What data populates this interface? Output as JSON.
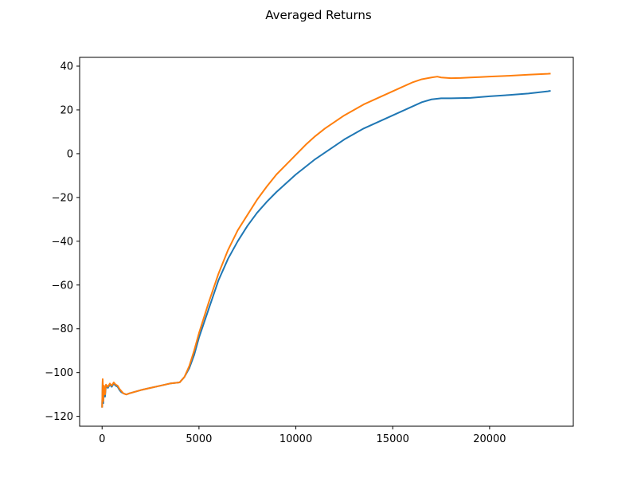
{
  "chart_data": {
    "type": "line",
    "title": "Averaged Returns",
    "xlabel": "",
    "ylabel": "",
    "xlim": [
      -1160,
      24320
    ],
    "ylim": [
      -124.5,
      44
    ],
    "xticks": [
      0,
      5000,
      10000,
      15000,
      20000
    ],
    "yticks": [
      -120,
      -100,
      -80,
      -60,
      -40,
      -20,
      0,
      20,
      40
    ],
    "grid": false,
    "series": [
      {
        "color": "#1f77b4",
        "points": [
          [
            0,
            -116
          ],
          [
            30,
            -104
          ],
          [
            60,
            -114
          ],
          [
            100,
            -107
          ],
          [
            150,
            -111
          ],
          [
            200,
            -106
          ],
          [
            300,
            -107
          ],
          [
            400,
            -105.5
          ],
          [
            500,
            -106.5
          ],
          [
            600,
            -105
          ],
          [
            700,
            -106
          ],
          [
            800,
            -106.5
          ],
          [
            900,
            -108
          ],
          [
            1000,
            -109
          ],
          [
            1100,
            -109.5
          ],
          [
            1250,
            -110
          ],
          [
            1400,
            -109.5
          ],
          [
            1600,
            -109
          ],
          [
            1800,
            -108.5
          ],
          [
            2000,
            -108
          ],
          [
            2500,
            -107
          ],
          [
            3000,
            -106
          ],
          [
            3500,
            -105
          ],
          [
            4000,
            -104.5
          ],
          [
            4250,
            -102
          ],
          [
            4500,
            -98
          ],
          [
            4750,
            -92
          ],
          [
            5000,
            -84
          ],
          [
            5500,
            -71
          ],
          [
            6000,
            -58
          ],
          [
            6500,
            -48
          ],
          [
            7000,
            -40
          ],
          [
            7500,
            -33
          ],
          [
            8000,
            -27
          ],
          [
            8500,
            -22
          ],
          [
            9000,
            -17.5
          ],
          [
            9500,
            -13.5
          ],
          [
            10000,
            -9.5
          ],
          [
            10500,
            -6
          ],
          [
            11000,
            -2.5
          ],
          [
            11500,
            0.5
          ],
          [
            12000,
            3.5
          ],
          [
            12500,
            6.5
          ],
          [
            13000,
            9
          ],
          [
            13500,
            11.5
          ],
          [
            14000,
            13.5
          ],
          [
            14500,
            15.5
          ],
          [
            15000,
            17.5
          ],
          [
            15500,
            19.5
          ],
          [
            16000,
            21.5
          ],
          [
            16500,
            23.5
          ],
          [
            17000,
            24.8
          ],
          [
            17500,
            25.3
          ],
          [
            18000,
            25.3
          ],
          [
            19000,
            25.5
          ],
          [
            20000,
            26.2
          ],
          [
            21000,
            26.8
          ],
          [
            22000,
            27.5
          ],
          [
            23000,
            28.5
          ],
          [
            23150,
            28.7
          ]
        ]
      },
      {
        "color": "#ff7f0e",
        "points": [
          [
            0,
            -116
          ],
          [
            30,
            -103
          ],
          [
            60,
            -113
          ],
          [
            100,
            -106
          ],
          [
            150,
            -110
          ],
          [
            200,
            -105.5
          ],
          [
            300,
            -106.5
          ],
          [
            400,
            -105
          ],
          [
            500,
            -106
          ],
          [
            600,
            -104.5
          ],
          [
            700,
            -105.5
          ],
          [
            800,
            -106
          ],
          [
            900,
            -107.5
          ],
          [
            1000,
            -108.5
          ],
          [
            1100,
            -109.5
          ],
          [
            1250,
            -110
          ],
          [
            1400,
            -109.5
          ],
          [
            1600,
            -109
          ],
          [
            1800,
            -108.5
          ],
          [
            2000,
            -108
          ],
          [
            2500,
            -107
          ],
          [
            3000,
            -106
          ],
          [
            3500,
            -105
          ],
          [
            4000,
            -104.5
          ],
          [
            4250,
            -102
          ],
          [
            4500,
            -97
          ],
          [
            4750,
            -90
          ],
          [
            5000,
            -82
          ],
          [
            5500,
            -68
          ],
          [
            6000,
            -55
          ],
          [
            6500,
            -44
          ],
          [
            7000,
            -35
          ],
          [
            7500,
            -28
          ],
          [
            8000,
            -21
          ],
          [
            8500,
            -15
          ],
          [
            9000,
            -9.5
          ],
          [
            9500,
            -5
          ],
          [
            10000,
            -0.5
          ],
          [
            10500,
            4
          ],
          [
            11000,
            8
          ],
          [
            11500,
            11.5
          ],
          [
            12000,
            14.5
          ],
          [
            12500,
            17.5
          ],
          [
            13000,
            20
          ],
          [
            13500,
            22.5
          ],
          [
            14000,
            24.5
          ],
          [
            14500,
            26.5
          ],
          [
            15000,
            28.5
          ],
          [
            15500,
            30.5
          ],
          [
            16000,
            32.5
          ],
          [
            16500,
            34
          ],
          [
            17000,
            34.8
          ],
          [
            17300,
            35.2
          ],
          [
            17500,
            34.8
          ],
          [
            18000,
            34.5
          ],
          [
            18500,
            34.6
          ],
          [
            19000,
            34.8
          ],
          [
            19500,
            35
          ],
          [
            20000,
            35.2
          ],
          [
            21000,
            35.6
          ],
          [
            22000,
            36.1
          ],
          [
            23000,
            36.5
          ],
          [
            23150,
            36.6
          ]
        ]
      }
    ]
  }
}
